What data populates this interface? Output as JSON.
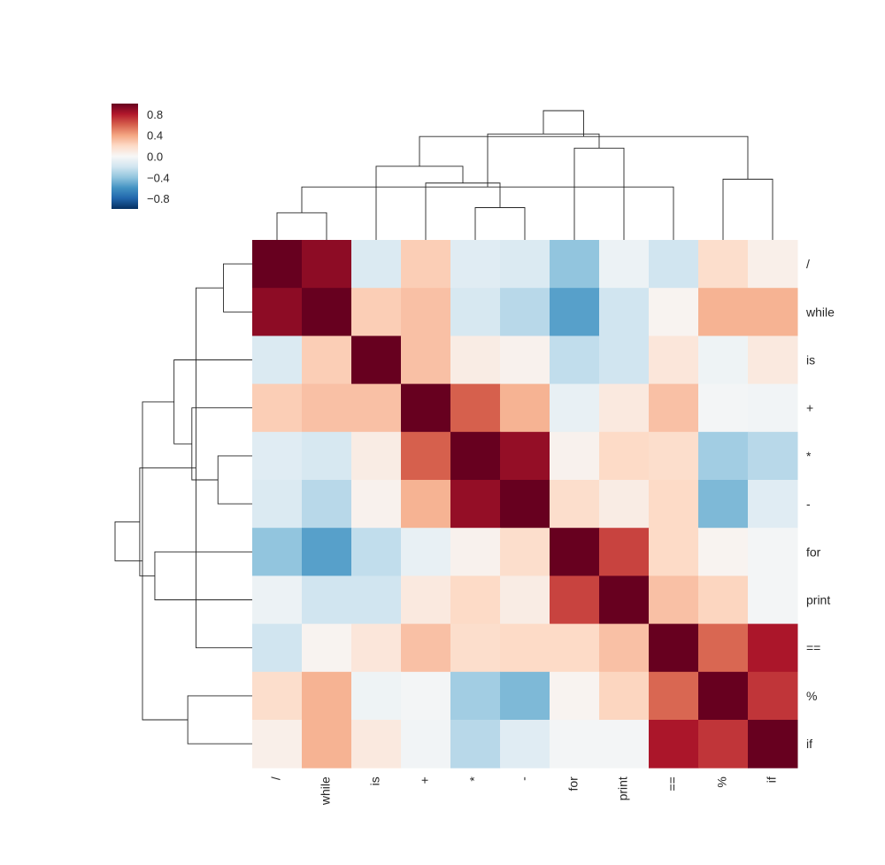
{
  "chart_data": {
    "type": "heatmap",
    "title": "",
    "xlabel": "",
    "ylabel": "",
    "colormap": "RdBu_r",
    "vmin": -1,
    "vmax": 1,
    "colorbar": {
      "ticks": [
        0.8,
        0.4,
        0.0,
        -0.4,
        -0.8
      ],
      "tick_labels": [
        "0.8",
        "0.4",
        "0.0",
        "−0.4",
        "−0.8"
      ]
    },
    "row_labels": [
      "/",
      "while",
      "is",
      "+",
      "*",
      "-",
      "for",
      "print",
      "==",
      "%",
      "if"
    ],
    "col_labels": [
      "/",
      "while",
      "is",
      "+",
      "*",
      "-",
      "for",
      "print",
      "==",
      "%",
      "if"
    ],
    "values": [
      [
        1.0,
        0.9,
        -0.15,
        0.25,
        -0.12,
        -0.15,
        -0.4,
        -0.06,
        -0.2,
        0.18,
        0.06
      ],
      [
        0.9,
        1.0,
        0.25,
        0.3,
        -0.17,
        -0.28,
        -0.55,
        -0.2,
        0.03,
        0.35,
        0.35
      ],
      [
        -0.15,
        0.25,
        1.0,
        0.3,
        0.08,
        0.04,
        -0.25,
        -0.2,
        0.12,
        -0.05,
        0.1
      ],
      [
        0.25,
        0.3,
        0.3,
        1.0,
        0.6,
        0.35,
        -0.08,
        0.1,
        0.3,
        -0.02,
        -0.03
      ],
      [
        -0.12,
        -0.17,
        0.08,
        0.6,
        1.0,
        0.88,
        0.04,
        0.2,
        0.18,
        -0.35,
        -0.28
      ],
      [
        -0.15,
        -0.28,
        0.04,
        0.35,
        0.88,
        1.0,
        0.18,
        0.08,
        0.2,
        -0.45,
        -0.12
      ],
      [
        -0.4,
        -0.55,
        -0.25,
        -0.08,
        0.04,
        0.18,
        1.0,
        0.68,
        0.2,
        0.03,
        -0.02
      ],
      [
        -0.06,
        -0.2,
        -0.2,
        0.1,
        0.2,
        0.08,
        0.68,
        1.0,
        0.3,
        0.22,
        -0.02
      ],
      [
        -0.2,
        0.03,
        0.12,
        0.3,
        0.18,
        0.2,
        0.2,
        0.3,
        1.0,
        0.58,
        0.82
      ],
      [
        0.18,
        0.35,
        -0.05,
        -0.02,
        -0.35,
        -0.45,
        0.03,
        0.22,
        0.58,
        1.0,
        0.72
      ],
      [
        0.06,
        0.35,
        0.1,
        -0.03,
        -0.28,
        -0.12,
        -0.02,
        -0.02,
        0.82,
        0.72,
        1.0
      ]
    ],
    "dendrogram": {
      "note": "",
      "merges": [
        [
          0,
          1
        ],
        [
          4,
          5
        ],
        [
          3,
          12
        ],
        [
          2,
          13
        ],
        [
          8,
          11
        ],
        [
          9,
          10
        ],
        [
          6,
          7
        ],
        [
          15,
          17
        ],
        [
          14,
          16
        ],
        [
          18,
          19
        ]
      ]
    }
  }
}
